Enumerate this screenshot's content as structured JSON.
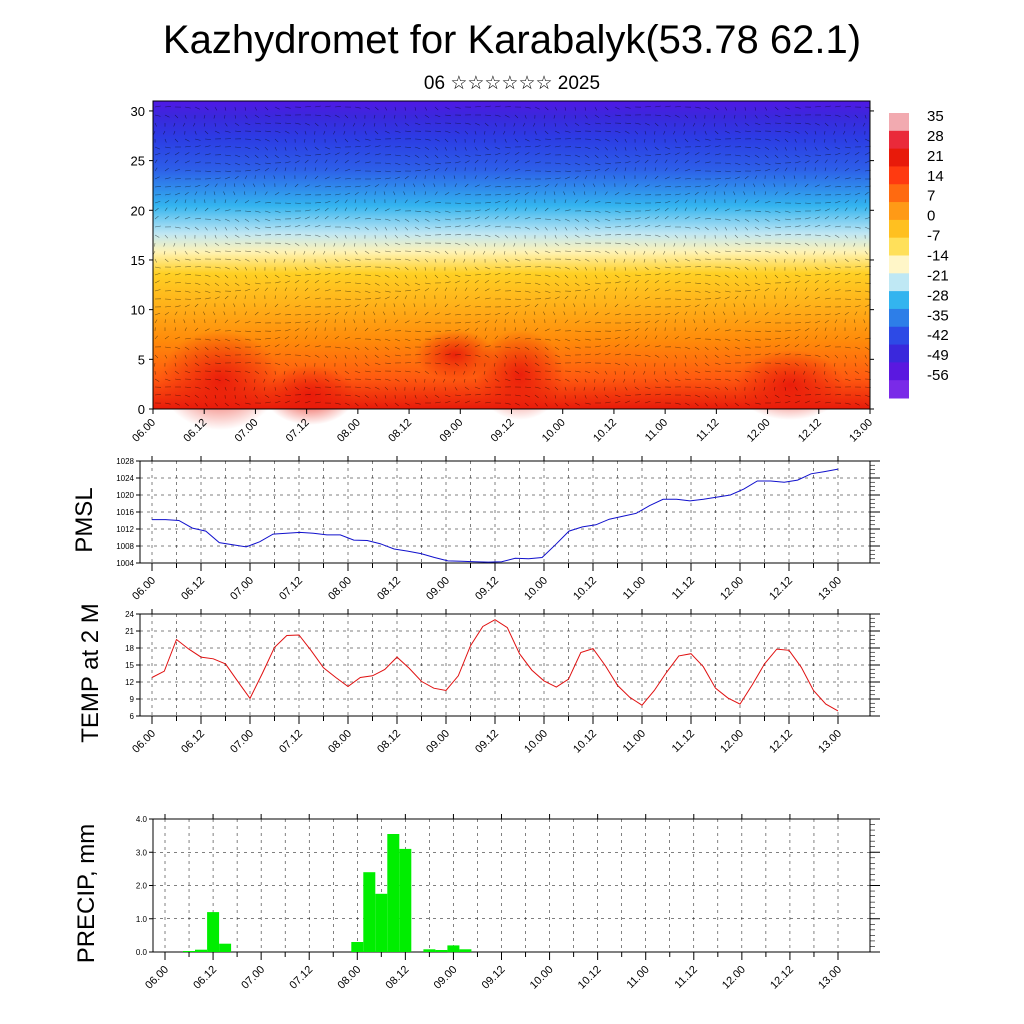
{
  "title": "Kazhydromet for Karabalyk(53.78 62.1)",
  "subtitle": "06 ☆☆☆☆☆☆ 2025",
  "time_ticks": [
    "06.00",
    "06.12",
    "07.00",
    "07.12",
    "08.00",
    "08.12",
    "09.00",
    "09.12",
    "10.00",
    "10.12",
    "11.00",
    "11.12",
    "12.00",
    "12.12",
    "13.00"
  ],
  "chart_data": [
    {
      "type": "heatmap",
      "name": "temperature-wind-cross-section",
      "x_ticks_ref": "time_ticks",
      "y_ticks": [
        "0",
        "5",
        "10",
        "15",
        "20",
        "25",
        "30"
      ],
      "ylim": [
        0,
        31
      ],
      "colorbar_labels": [
        "35",
        "28",
        "21",
        "14",
        "7",
        "0",
        "-7",
        "-14",
        "-21",
        "-28",
        "-35",
        "-42",
        "-49",
        "-56"
      ],
      "colorbar_range": [
        -63,
        42
      ],
      "colors": {
        "hot": "#e81a0a",
        "warm": "#ff8a0a",
        "yellow": "#ffd024",
        "pale": "#fff3b5",
        "cyan": "#33b4ef",
        "blue": "#2d5ee8",
        "violet": "#4b18e0"
      }
    },
    {
      "type": "line",
      "ylabel": "PMSL",
      "ylim": [
        1004,
        1028
      ],
      "y_ticks": [
        1004,
        1008,
        1012,
        1016,
        1020,
        1024,
        1028
      ],
      "x_ticks_ref": "time_ticks",
      "series": [
        {
          "color": "#1010cc",
          "values": [
            1014.2,
            1014.2,
            1014.0,
            1012.2,
            1011.5,
            1008.8,
            1008.3,
            1007.8,
            1009.0,
            1010.8,
            1011.0,
            1011.2,
            1011.0,
            1010.6,
            1010.6,
            1009.4,
            1009.3,
            1008.5,
            1007.3,
            1006.8,
            1006.2,
            1005.3,
            1004.5,
            1004.4,
            1004.3,
            1004.2,
            1004.3,
            1005.1,
            1005.0,
            1005.3,
            1008.3,
            1011.5,
            1012.5,
            1013.0,
            1014.3,
            1015.0,
            1015.7,
            1017.5,
            1019.0,
            1019.0,
            1018.6,
            1019.0,
            1019.5,
            1020.0,
            1021.4,
            1023.3,
            1023.3,
            1023.0,
            1023.5,
            1025.0,
            1025.5,
            1026.1
          ]
        }
      ]
    },
    {
      "type": "line",
      "ylabel": "TEMP at 2 M",
      "ylim": [
        6,
        24
      ],
      "y_ticks": [
        6,
        9,
        12,
        15,
        18,
        21,
        24
      ],
      "x_ticks_ref": "time_ticks",
      "series": [
        {
          "color": "#e01010",
          "values": [
            12.8,
            13.9,
            19.5,
            17.8,
            16.4,
            16.1,
            15.2,
            12.1,
            9.1,
            13.5,
            18.1,
            20.2,
            20.3,
            17.5,
            14.5,
            12.8,
            11.2,
            12.8,
            13.1,
            14.2,
            16.4,
            14.4,
            12.1,
            10.9,
            10.5,
            13.1,
            18.4,
            21.8,
            23.0,
            21.6,
            17.0,
            14.1,
            12.2,
            11.1,
            12.5,
            17.2,
            17.9,
            14.9,
            11.4,
            9.3,
            7.9,
            10.5,
            13.7,
            16.6,
            17.0,
            14.7,
            10.9,
            9.2,
            8.1,
            11.5,
            15.2,
            17.8,
            17.6,
            14.6,
            10.5,
            8.1,
            6.9
          ]
        }
      ]
    },
    {
      "type": "bar",
      "ylabel": "PRECIP, mm",
      "ylim": [
        0,
        4
      ],
      "y_ticks": [
        "0.0",
        "1.0",
        "2.0",
        "3.0",
        "4.0"
      ],
      "x_ticks_ref": "time_ticks",
      "color": "#00ee00",
      "values": [
        0,
        0,
        0.03,
        0.07,
        1.2,
        0.25,
        0,
        0,
        0,
        0,
        0,
        0,
        0,
        0,
        0,
        0,
        0.3,
        2.4,
        1.75,
        3.55,
        3.1,
        0,
        0.08,
        0.06,
        0.2,
        0.08,
        0,
        0,
        0,
        0,
        0,
        0,
        0,
        0,
        0,
        0,
        0,
        0,
        0,
        0,
        0,
        0,
        0,
        0,
        0,
        0,
        0,
        0,
        0,
        0,
        0,
        0,
        0,
        0,
        0,
        0,
        0
      ]
    }
  ]
}
